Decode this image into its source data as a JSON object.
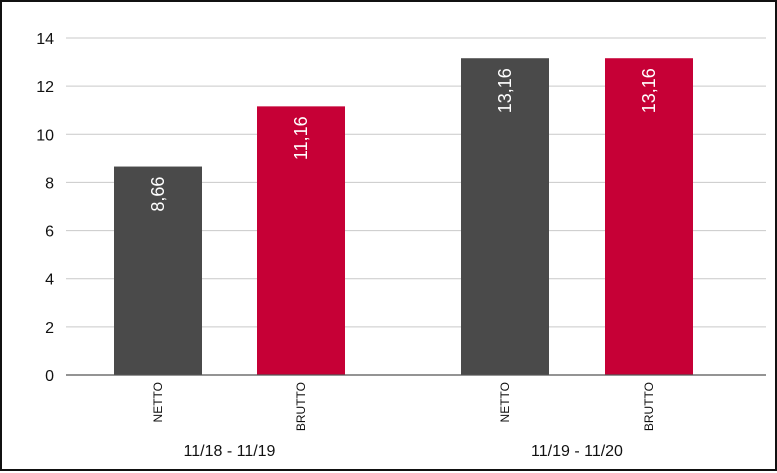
{
  "chart_data": {
    "type": "bar",
    "groups": [
      {
        "label": "11/18 - 11/19",
        "bars": [
          {
            "category": "NETTO",
            "value": 8.66,
            "label": "8,66",
            "color": "#4a4a4a"
          },
          {
            "category": "BRUTTO",
            "value": 11.16,
            "label": "11,16",
            "color": "#c60036"
          }
        ]
      },
      {
        "label": "11/19 - 11/20",
        "bars": [
          {
            "category": "NETTO",
            "value": 13.16,
            "label": "13,16",
            "color": "#4a4a4a"
          },
          {
            "category": "BRUTTO",
            "value": 13.16,
            "label": "13,16",
            "color": "#c60036"
          }
        ]
      }
    ],
    "ylim": [
      0,
      14
    ],
    "yticks": [
      0,
      2,
      4,
      6,
      8,
      10,
      12,
      14
    ],
    "grid": true,
    "legend": "none",
    "colors": {
      "netto": "#4a4a4a",
      "brutto": "#c60036"
    }
  }
}
